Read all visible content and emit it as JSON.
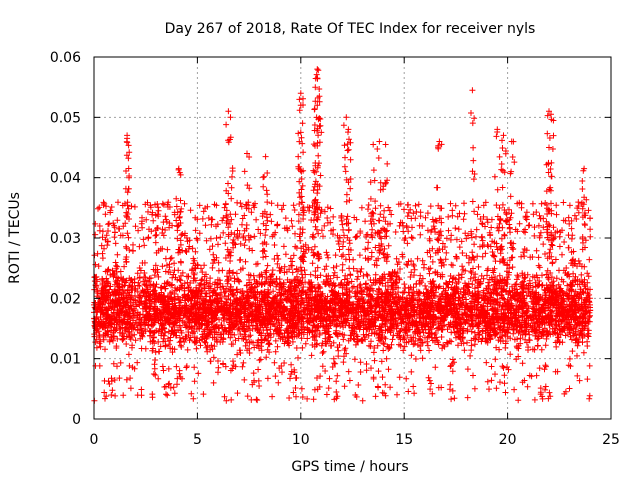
{
  "chart_data": {
    "type": "scatter",
    "title": "Day 267 of 2018, Rate Of TEC Index for receiver nyls",
    "xlabel": "GPS time / hours",
    "ylabel": "ROTI / TECUs",
    "xlim": [
      0,
      25
    ],
    "ylim": [
      0,
      0.06
    ],
    "x_ticks": [
      "0",
      "5",
      "10",
      "15",
      "20",
      "25"
    ],
    "y_ticks": [
      "0",
      "0.01",
      "0.02",
      "0.03",
      "0.04",
      "0.05",
      "0.06"
    ],
    "grid": true,
    "marker": "plus",
    "series": [
      {
        "name": "ROTI",
        "color": "#ff0000",
        "x_range": [
          0,
          24
        ],
        "typical_range": [
          0.008,
          0.026
        ],
        "min_value": 0.003,
        "outliers": [
          {
            "x": 6.5,
            "y": 0.051
          },
          {
            "x": 6.6,
            "y": 0.05
          },
          {
            "x": 1.6,
            "y": 0.047
          },
          {
            "x": 1.6,
            "y": 0.0465
          },
          {
            "x": 10.0,
            "y": 0.054
          },
          {
            "x": 10.0,
            "y": 0.052
          },
          {
            "x": 10.0,
            "y": 0.0475
          },
          {
            "x": 10.8,
            "y": 0.058
          },
          {
            "x": 10.8,
            "y": 0.0565
          },
          {
            "x": 10.7,
            "y": 0.055
          },
          {
            "x": 10.9,
            "y": 0.0535
          },
          {
            "x": 10.8,
            "y": 0.052
          },
          {
            "x": 12.2,
            "y": 0.05
          },
          {
            "x": 12.3,
            "y": 0.048
          },
          {
            "x": 13.8,
            "y": 0.046
          },
          {
            "x": 13.5,
            "y": 0.0455
          },
          {
            "x": 14.1,
            "y": 0.0455
          },
          {
            "x": 16.7,
            "y": 0.046
          },
          {
            "x": 18.3,
            "y": 0.0545
          },
          {
            "x": 19.5,
            "y": 0.048
          },
          {
            "x": 19.8,
            "y": 0.047
          },
          {
            "x": 20.2,
            "y": 0.046
          },
          {
            "x": 22.0,
            "y": 0.051
          },
          {
            "x": 22.1,
            "y": 0.0505
          },
          {
            "x": 22.0,
            "y": 0.045
          },
          {
            "x": 23.7,
            "y": 0.0415
          },
          {
            "x": 4.1,
            "y": 0.0415
          },
          {
            "x": 7.4,
            "y": 0.044
          },
          {
            "x": 8.3,
            "y": 0.0435
          }
        ]
      }
    ]
  }
}
